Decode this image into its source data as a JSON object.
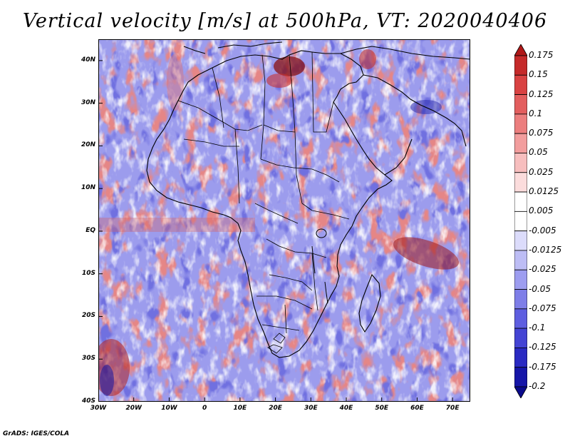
{
  "title": "Vertical velocity [m/s] at 500hPa, VT: 2020040406",
  "footer": "GrADS: IGES/COLA",
  "map": {
    "variable": "vertical velocity",
    "level": "500hPa",
    "lon_range": [
      -30,
      75
    ],
    "lat_range": [
      -40,
      45
    ]
  },
  "lat_labels": [
    "40N",
    "30N",
    "20N",
    "10N",
    "EQ",
    "10S",
    "20S",
    "30S",
    "40S"
  ],
  "lat_values": [
    40,
    30,
    20,
    10,
    0,
    -10,
    -20,
    -30,
    -40
  ],
  "lon_labels": [
    "30W",
    "20W",
    "10W",
    "0",
    "10E",
    "20E",
    "30E",
    "40E",
    "50E",
    "60E",
    "70E"
  ],
  "lon_values": [
    -30,
    -20,
    -10,
    0,
    10,
    20,
    30,
    40,
    50,
    60,
    70
  ],
  "colorbar": {
    "labels": [
      "0.175",
      "0.15",
      "0.125",
      "0.1",
      "0.075",
      "0.05",
      "0.025",
      "0.0125",
      "0.005",
      "-0.005",
      "-0.0125",
      "-0.025",
      "-0.05",
      "-0.075",
      "-0.1",
      "-0.125",
      "-0.175",
      "-0.2"
    ],
    "colors": [
      "#b01818",
      "#c52a2a",
      "#d94242",
      "#e35e5e",
      "#ec7e7e",
      "#f29d9d",
      "#f7bebe",
      "#fbdcdc",
      "#ffffff",
      "#ffffff",
      "#dcdcfb",
      "#bdbdf5",
      "#9d9df0",
      "#7e7ee8",
      "#5e5ee0",
      "#4444d4",
      "#2a2ac2",
      "#1616a8",
      "#0a0a8c"
    ]
  }
}
